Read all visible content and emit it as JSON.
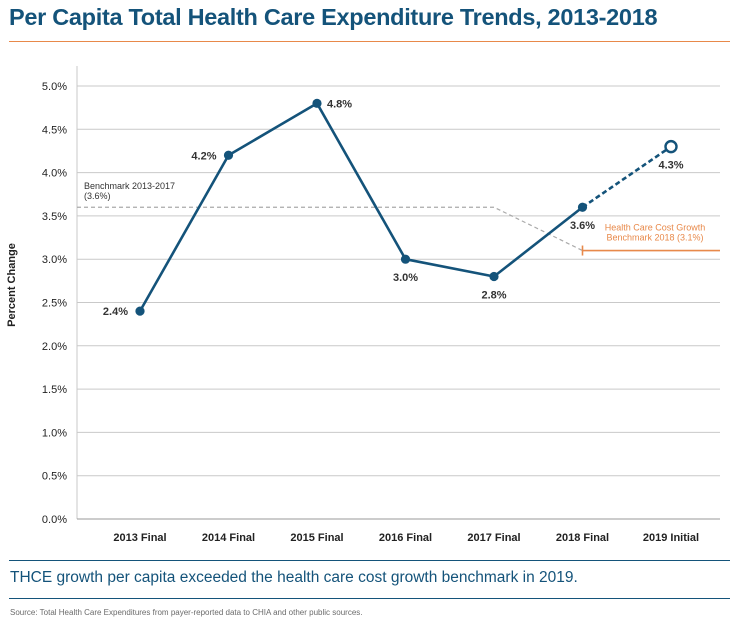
{
  "title": "Per Capita Total Health Care Expenditure Trends, 2013-2018",
  "takeaway": "THCE growth per capita exceeded the health care cost growth benchmark in 2019.",
  "source": "Source: Total Health Care Expenditures from payer-reported data to CHIA and other public sources.",
  "colors": {
    "title": "#14537a",
    "series": "#14537a",
    "benchmark_line": "#aaaaaa",
    "benchmark_2018": "#e8894a",
    "grid": "#c9c9c9",
    "rule_orange": "#e8894a"
  },
  "chart_data": {
    "type": "line",
    "title": "",
    "xlabel": "",
    "ylabel": "Percent Change",
    "ylim": [
      0,
      5.0
    ],
    "yticks": [
      0.0,
      0.5,
      1.0,
      1.5,
      2.0,
      2.5,
      3.0,
      3.5,
      4.0,
      4.5,
      5.0
    ],
    "ytick_labels": [
      "0.0%",
      "0.5%",
      "1.0%",
      "1.5%",
      "2.0%",
      "2.5%",
      "3.0%",
      "3.5%",
      "4.0%",
      "4.5%",
      "5.0%"
    ],
    "grid": true,
    "categories": [
      "2013 Final",
      "2014 Final",
      "2015 Final",
      "2016 Final",
      "2017 Final",
      "2018 Final",
      "2019 Initial"
    ],
    "series": [
      {
        "values": [
          2.4,
          4.2,
          4.8,
          3.0,
          2.8,
          3.6,
          4.3
        ],
        "labels": [
          "2.4%",
          "4.2%",
          "4.8%",
          "3.0%",
          "2.8%",
          "3.6%",
          "4.3%"
        ],
        "style": "solid, last segment dashed to open marker"
      }
    ],
    "benchmarks": [
      {
        "label_line1": "Benchmark 2013-2017",
        "label_line2": "(3.6%)",
        "value": 3.6,
        "from": "2013 Final",
        "to": "2017 Final",
        "style": "dashed gray"
      },
      {
        "label_line1": "Health Care Cost Growth",
        "label_line2": "Benchmark 2018 (3.1%)",
        "value": 3.1,
        "from": "2018 Final",
        "style": "solid orange"
      }
    ]
  }
}
